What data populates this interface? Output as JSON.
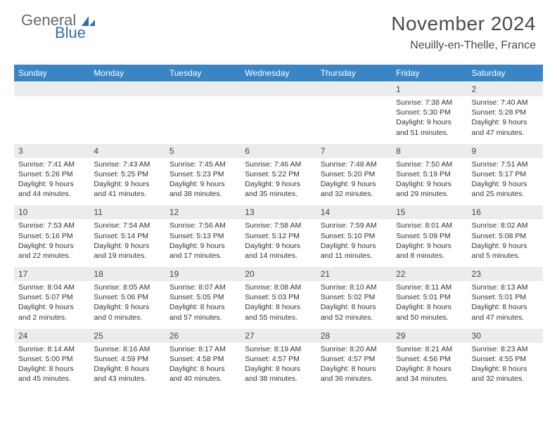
{
  "logo": {
    "general": "General",
    "blue": "Blue"
  },
  "header": {
    "month_title": "November 2024",
    "location": "Neuilly-en-Thelle, France"
  },
  "colors": {
    "header_bg": "#3a85c6",
    "num_bg": "#ececec",
    "logo_gray": "#6b6b6b",
    "logo_blue": "#2f6fb0"
  },
  "day_names": [
    "Sunday",
    "Monday",
    "Tuesday",
    "Wednesday",
    "Thursday",
    "Friday",
    "Saturday"
  ],
  "weeks": [
    [
      null,
      null,
      null,
      null,
      null,
      {
        "n": "1",
        "sunrise": "Sunrise: 7:38 AM",
        "sunset": "Sunset: 5:30 PM",
        "daylight": "Daylight: 9 hours and 51 minutes."
      },
      {
        "n": "2",
        "sunrise": "Sunrise: 7:40 AM",
        "sunset": "Sunset: 5:28 PM",
        "daylight": "Daylight: 9 hours and 47 minutes."
      }
    ],
    [
      {
        "n": "3",
        "sunrise": "Sunrise: 7:41 AM",
        "sunset": "Sunset: 5:26 PM",
        "daylight": "Daylight: 9 hours and 44 minutes."
      },
      {
        "n": "4",
        "sunrise": "Sunrise: 7:43 AM",
        "sunset": "Sunset: 5:25 PM",
        "daylight": "Daylight: 9 hours and 41 minutes."
      },
      {
        "n": "5",
        "sunrise": "Sunrise: 7:45 AM",
        "sunset": "Sunset: 5:23 PM",
        "daylight": "Daylight: 9 hours and 38 minutes."
      },
      {
        "n": "6",
        "sunrise": "Sunrise: 7:46 AM",
        "sunset": "Sunset: 5:22 PM",
        "daylight": "Daylight: 9 hours and 35 minutes."
      },
      {
        "n": "7",
        "sunrise": "Sunrise: 7:48 AM",
        "sunset": "Sunset: 5:20 PM",
        "daylight": "Daylight: 9 hours and 32 minutes."
      },
      {
        "n": "8",
        "sunrise": "Sunrise: 7:50 AM",
        "sunset": "Sunset: 5:19 PM",
        "daylight": "Daylight: 9 hours and 29 minutes."
      },
      {
        "n": "9",
        "sunrise": "Sunrise: 7:51 AM",
        "sunset": "Sunset: 5:17 PM",
        "daylight": "Daylight: 9 hours and 25 minutes."
      }
    ],
    [
      {
        "n": "10",
        "sunrise": "Sunrise: 7:53 AM",
        "sunset": "Sunset: 5:16 PM",
        "daylight": "Daylight: 9 hours and 22 minutes."
      },
      {
        "n": "11",
        "sunrise": "Sunrise: 7:54 AM",
        "sunset": "Sunset: 5:14 PM",
        "daylight": "Daylight: 9 hours and 19 minutes."
      },
      {
        "n": "12",
        "sunrise": "Sunrise: 7:56 AM",
        "sunset": "Sunset: 5:13 PM",
        "daylight": "Daylight: 9 hours and 17 minutes."
      },
      {
        "n": "13",
        "sunrise": "Sunrise: 7:58 AM",
        "sunset": "Sunset: 5:12 PM",
        "daylight": "Daylight: 9 hours and 14 minutes."
      },
      {
        "n": "14",
        "sunrise": "Sunrise: 7:59 AM",
        "sunset": "Sunset: 5:10 PM",
        "daylight": "Daylight: 9 hours and 11 minutes."
      },
      {
        "n": "15",
        "sunrise": "Sunrise: 8:01 AM",
        "sunset": "Sunset: 5:09 PM",
        "daylight": "Daylight: 9 hours and 8 minutes."
      },
      {
        "n": "16",
        "sunrise": "Sunrise: 8:02 AM",
        "sunset": "Sunset: 5:08 PM",
        "daylight": "Daylight: 9 hours and 5 minutes."
      }
    ],
    [
      {
        "n": "17",
        "sunrise": "Sunrise: 8:04 AM",
        "sunset": "Sunset: 5:07 PM",
        "daylight": "Daylight: 9 hours and 2 minutes."
      },
      {
        "n": "18",
        "sunrise": "Sunrise: 8:05 AM",
        "sunset": "Sunset: 5:06 PM",
        "daylight": "Daylight: 9 hours and 0 minutes."
      },
      {
        "n": "19",
        "sunrise": "Sunrise: 8:07 AM",
        "sunset": "Sunset: 5:05 PM",
        "daylight": "Daylight: 8 hours and 57 minutes."
      },
      {
        "n": "20",
        "sunrise": "Sunrise: 8:08 AM",
        "sunset": "Sunset: 5:03 PM",
        "daylight": "Daylight: 8 hours and 55 minutes."
      },
      {
        "n": "21",
        "sunrise": "Sunrise: 8:10 AM",
        "sunset": "Sunset: 5:02 PM",
        "daylight": "Daylight: 8 hours and 52 minutes."
      },
      {
        "n": "22",
        "sunrise": "Sunrise: 8:11 AM",
        "sunset": "Sunset: 5:01 PM",
        "daylight": "Daylight: 8 hours and 50 minutes."
      },
      {
        "n": "23",
        "sunrise": "Sunrise: 8:13 AM",
        "sunset": "Sunset: 5:01 PM",
        "daylight": "Daylight: 8 hours and 47 minutes."
      }
    ],
    [
      {
        "n": "24",
        "sunrise": "Sunrise: 8:14 AM",
        "sunset": "Sunset: 5:00 PM",
        "daylight": "Daylight: 8 hours and 45 minutes."
      },
      {
        "n": "25",
        "sunrise": "Sunrise: 8:16 AM",
        "sunset": "Sunset: 4:59 PM",
        "daylight": "Daylight: 8 hours and 43 minutes."
      },
      {
        "n": "26",
        "sunrise": "Sunrise: 8:17 AM",
        "sunset": "Sunset: 4:58 PM",
        "daylight": "Daylight: 8 hours and 40 minutes."
      },
      {
        "n": "27",
        "sunrise": "Sunrise: 8:19 AM",
        "sunset": "Sunset: 4:57 PM",
        "daylight": "Daylight: 8 hours and 38 minutes."
      },
      {
        "n": "28",
        "sunrise": "Sunrise: 8:20 AM",
        "sunset": "Sunset: 4:57 PM",
        "daylight": "Daylight: 8 hours and 36 minutes."
      },
      {
        "n": "29",
        "sunrise": "Sunrise: 8:21 AM",
        "sunset": "Sunset: 4:56 PM",
        "daylight": "Daylight: 8 hours and 34 minutes."
      },
      {
        "n": "30",
        "sunrise": "Sunrise: 8:23 AM",
        "sunset": "Sunset: 4:55 PM",
        "daylight": "Daylight: 8 hours and 32 minutes."
      }
    ]
  ]
}
